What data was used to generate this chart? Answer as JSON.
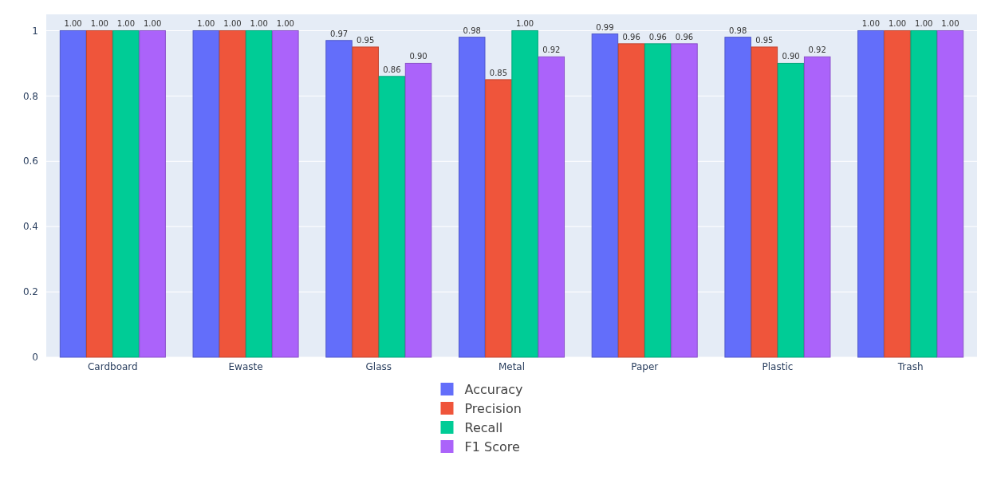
{
  "chart_data": {
    "type": "bar",
    "categories": [
      "Cardboard",
      "Ewaste",
      "Glass",
      "Metal",
      "Paper",
      "Plastic",
      "Trash"
    ],
    "series": [
      {
        "name": "Accuracy",
        "color": "#636efa",
        "values": [
          1.0,
          1.0,
          0.97,
          0.98,
          0.99,
          0.98,
          1.0
        ],
        "value_labels": [
          "1.00",
          "1.00",
          "0.97",
          "0.98",
          "0.99",
          "0.98",
          "1.00"
        ]
      },
      {
        "name": "Precision",
        "color": "#ef553b",
        "values": [
          1.0,
          1.0,
          0.95,
          0.85,
          0.96,
          0.95,
          1.0
        ],
        "value_labels": [
          "1.00",
          "1.00",
          "0.95",
          "0.85",
          "0.96",
          "0.95",
          "1.00"
        ]
      },
      {
        "name": "Recall",
        "color": "#00cc96",
        "values": [
          1.0,
          1.0,
          0.86,
          1.0,
          0.96,
          0.9,
          1.0
        ],
        "value_labels": [
          "1.00",
          "1.00",
          "0.86",
          "1.00",
          "0.96",
          "0.90",
          "1.00"
        ]
      },
      {
        "name": "F1 Score",
        "color": "#ab63fa",
        "values": [
          1.0,
          1.0,
          0.9,
          0.92,
          0.96,
          0.92,
          1.0
        ],
        "value_labels": [
          "1.00",
          "1.00",
          "0.90",
          "0.92",
          "0.96",
          "0.92",
          "1.00"
        ]
      }
    ],
    "ylim": [
      0,
      1.05
    ],
    "yticks": [
      0,
      0.2,
      0.4,
      0.6,
      0.8,
      1
    ],
    "grid": "y",
    "legend": "bottom"
  }
}
